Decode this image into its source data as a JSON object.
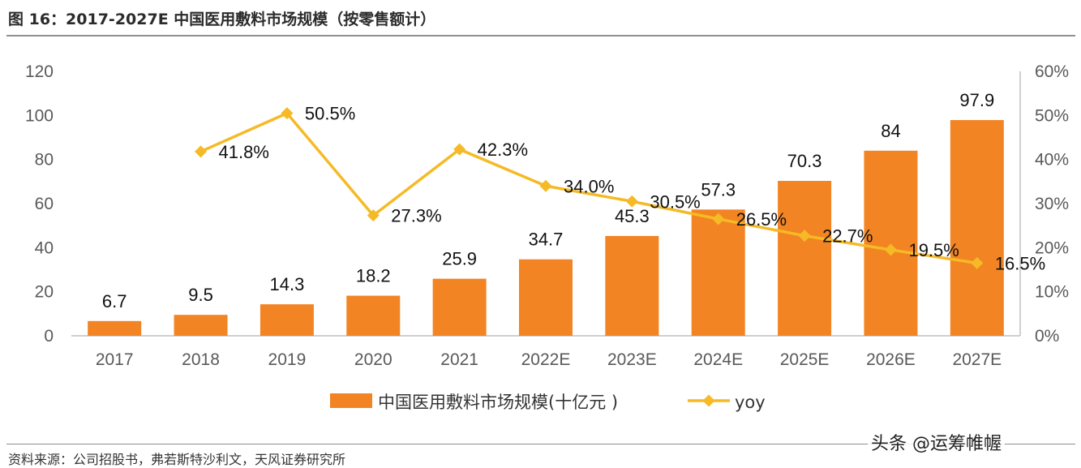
{
  "figure_title": "图 16：2017-2027E 中国医用敷料市场规模（按零售额计）",
  "source_note": "资料来源：公司招股书，弗若斯特沙利文，天风证券研究所",
  "watermark_text": "头条 @运筹帷幄",
  "colors": {
    "bar": "#F28423",
    "line": "#F5BA25",
    "axis": "#bfbfbf",
    "text": "#595959"
  },
  "chart_data": {
    "type": "bar",
    "categories": [
      "2017",
      "2018",
      "2019",
      "2020",
      "2021",
      "2022E",
      "2023E",
      "2024E",
      "2025E",
      "2026E",
      "2027E"
    ],
    "series": [
      {
        "name": "中国医用敷料市场规模(十亿元 )",
        "type": "bar",
        "axis": "left",
        "values": [
          6.7,
          9.5,
          14.3,
          18.2,
          25.9,
          34.7,
          45.3,
          57.3,
          70.3,
          84,
          97.9
        ],
        "labels": [
          "6.7",
          "9.5",
          "14.3",
          "18.2",
          "25.9",
          "34.7",
          "45.3",
          "57.3",
          "70.3",
          "84",
          "97.9"
        ]
      },
      {
        "name": "yoy",
        "type": "line",
        "axis": "right",
        "marker": "diamond",
        "values": [
          null,
          41.8,
          50.5,
          27.3,
          42.3,
          34.0,
          30.5,
          26.5,
          22.7,
          19.5,
          16.5
        ],
        "labels": [
          "",
          "41.8%",
          "50.5%",
          "27.3%",
          "42.3%",
          "34.0%",
          "30.5%",
          "26.5%",
          "22.7%",
          "19.5%",
          "16.5%"
        ]
      }
    ],
    "y_left": {
      "min": 0,
      "max": 120,
      "ticks": [
        "0",
        "20",
        "40",
        "60",
        "80",
        "100",
        "120"
      ]
    },
    "y_right": {
      "min": 0,
      "max": 60,
      "ticks": [
        "0%",
        "10%",
        "20%",
        "30%",
        "40%",
        "50%",
        "60%"
      ]
    },
    "legend_position": "bottom",
    "grid": false
  }
}
